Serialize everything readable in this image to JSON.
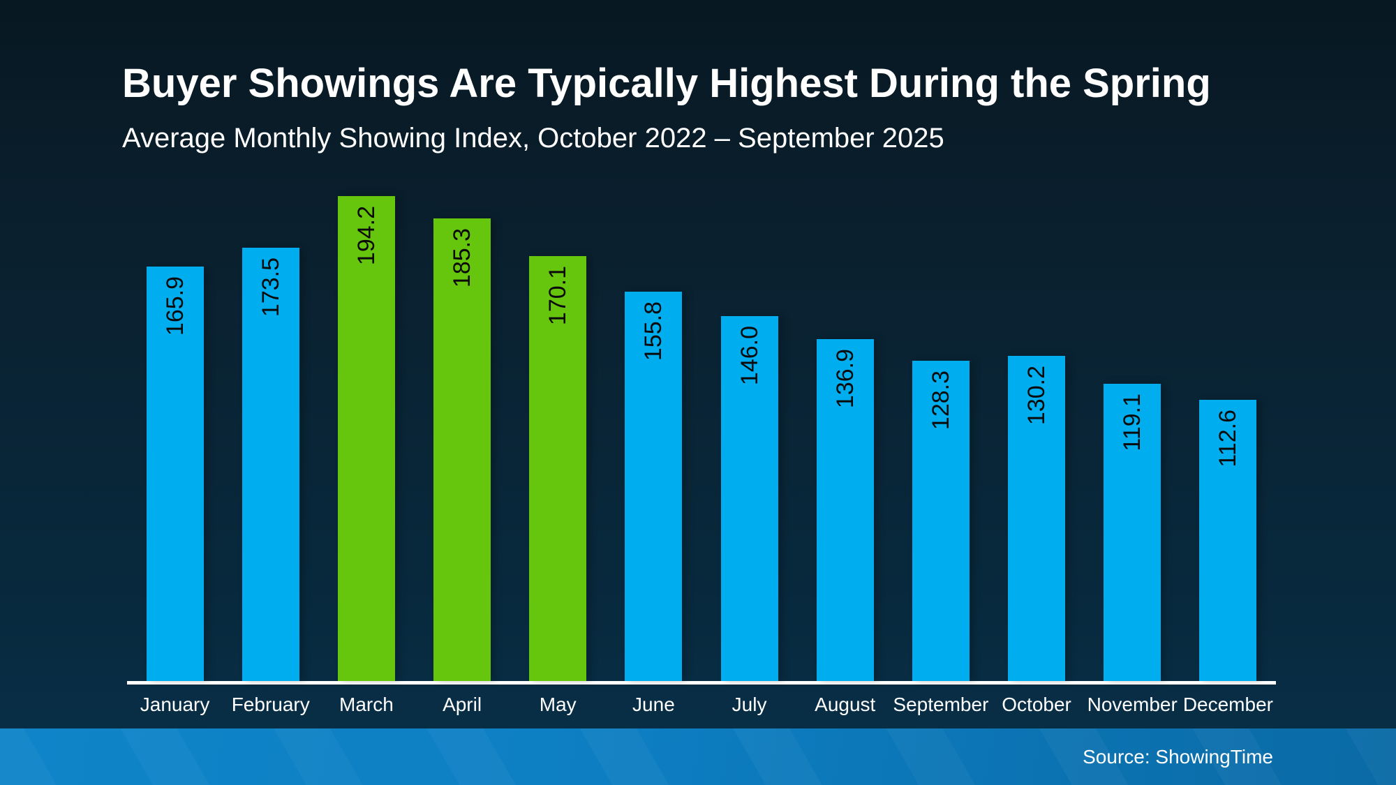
{
  "slide": {
    "title": "Buyer Showings Are Typically Highest During the Spring",
    "subtitle": "Average Monthly Showing Index, October 2022 – September 2025",
    "source": "Source: ShowingTime"
  },
  "colors": {
    "background_top": "#081822",
    "background_bottom": "#083049",
    "bar_blue": "#00AEEF",
    "bar_green": "#66C60D",
    "axis_line": "#ffffff",
    "value_label": "#0a0a0a",
    "month_label": "#ffffff",
    "footer_gradient_left": "#0f85c8",
    "footer_gradient_right": "#0a6aa5",
    "title_text": "#ffffff"
  },
  "chart_data": {
    "type": "bar",
    "title": "Buyer Showings Are Typically Highest During the Spring",
    "subtitle": "Average Monthly Showing Index, October 2022 – September 2025",
    "categories": [
      "January",
      "February",
      "March",
      "April",
      "May",
      "June",
      "July",
      "August",
      "September",
      "October",
      "November",
      "December"
    ],
    "values": [
      165.9,
      173.5,
      194.2,
      185.3,
      170.1,
      155.8,
      146.0,
      136.9,
      128.3,
      130.2,
      119.1,
      112.6
    ],
    "bar_colors": [
      "#00AEEF",
      "#00AEEF",
      "#66C60D",
      "#66C60D",
      "#66C60D",
      "#00AEEF",
      "#00AEEF",
      "#00AEEF",
      "#00AEEF",
      "#00AEEF",
      "#00AEEF",
      "#00AEEF"
    ],
    "highlighted_categories": [
      "March",
      "April",
      "May"
    ],
    "value_label_format": "1-decimal",
    "xlabel": "",
    "ylabel": "",
    "ylim": [
      0,
      205
    ],
    "grid": false,
    "legend": "none",
    "source": "Source: ShowingTime"
  }
}
